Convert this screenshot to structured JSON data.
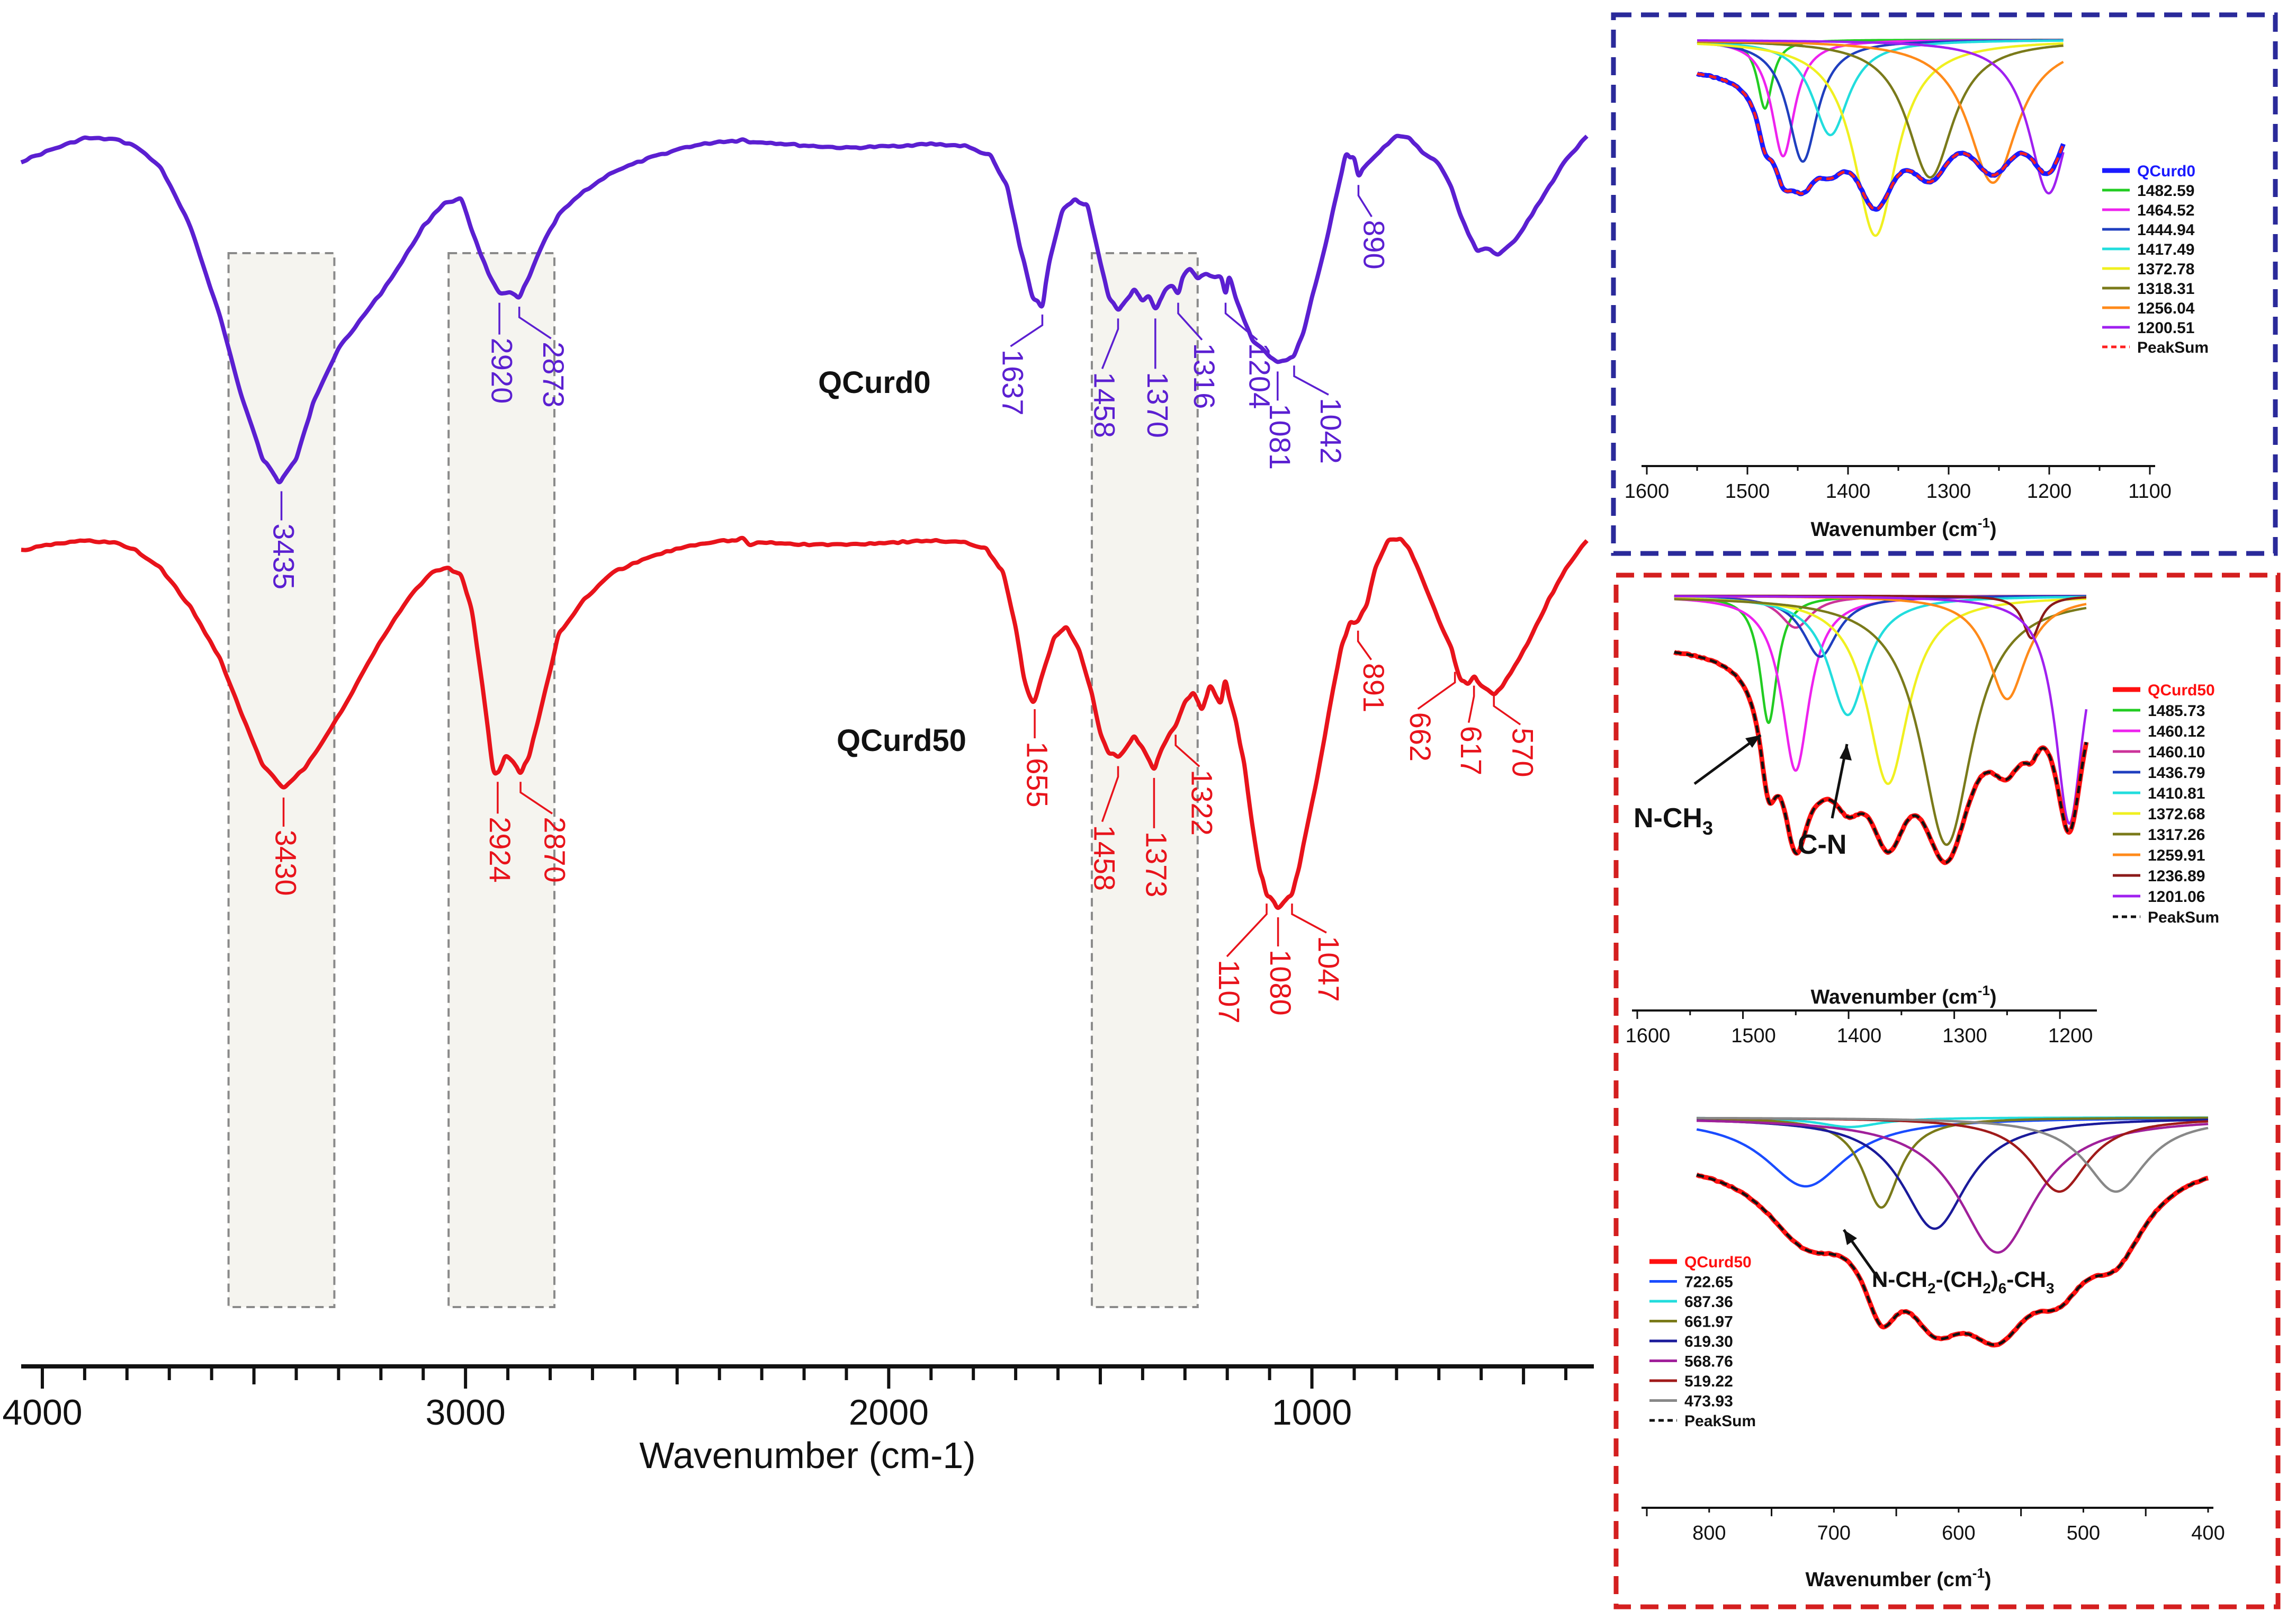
{
  "chart_data": [
    {
      "type": "line",
      "xlabel": "Wavenumber (cm-1)",
      "ylabel": "",
      "xlim": [
        4050,
        340
      ],
      "x_reversed": true,
      "grid": false,
      "x_ticks": [
        4000,
        3000,
        2000,
        1000
      ],
      "highlight_bands": [
        [
          3560,
          3310
        ],
        [
          3040,
          2790
        ],
        [
          1520,
          1270
        ]
      ],
      "series": [
        {
          "name": "QCurd0",
          "color": "#5b1fd1",
          "x": [
            4050,
            3980,
            3900,
            3830,
            3780,
            3720,
            3650,
            3580,
            3530,
            3480,
            3440,
            3400,
            3360,
            3300,
            3250,
            3200,
            3150,
            3100,
            3050,
            3010,
            2975,
            2945,
            2920,
            2895,
            2873,
            2850,
            2820,
            2780,
            2720,
            2650,
            2560,
            2480,
            2400,
            2360,
            2345,
            2330,
            2300,
            2200,
            2100,
            2000,
            1900,
            1820,
            1760,
            1720,
            1690,
            1660,
            1637,
            1620,
            1590,
            1560,
            1530,
            1500,
            1480,
            1458,
            1440,
            1420,
            1400,
            1385,
            1370,
            1345,
            1330,
            1316,
            1305,
            1290,
            1270,
            1250,
            1230,
            1215,
            1204,
            1195,
            1180,
            1160,
            1140,
            1120,
            1100,
            1081,
            1060,
            1042,
            1020,
            1000,
            980,
            960,
            940,
            920,
            900,
            890,
            870,
            840,
            800,
            770,
            740,
            700,
            670,
            650,
            630,
            610,
            590,
            560,
            520,
            480,
            440,
            400,
            350
          ],
          "y": [
            1.335,
            1.365,
            1.395,
            1.392,
            1.375,
            1.32,
            1.17,
            0.94,
            0.74,
            0.58,
            0.52,
            0.58,
            0.72,
            0.86,
            0.93,
            1.0,
            1.08,
            1.17,
            1.23,
            1.24,
            1.13,
            1.05,
            1.0,
            1.0,
            0.99,
            1.04,
            1.12,
            1.2,
            1.26,
            1.31,
            1.346,
            1.372,
            1.386,
            1.388,
            1.393,
            1.384,
            1.385,
            1.376,
            1.37,
            1.374,
            1.38,
            1.375,
            1.35,
            1.27,
            1.12,
            0.99,
            0.97,
            1.08,
            1.21,
            1.24,
            1.22,
            1.08,
            0.99,
            0.96,
            0.98,
            1.01,
            0.98,
            0.99,
            0.96,
            1.01,
            1.02,
            1.0,
            1.04,
            1.06,
            1.04,
            1.05,
            1.04,
            1.04,
            1.0,
            1.04,
            0.99,
            0.93,
            0.88,
            0.86,
            0.84,
            0.825,
            0.83,
            0.84,
            0.9,
            0.99,
            1.07,
            1.16,
            1.26,
            1.35,
            1.34,
            1.3,
            1.33,
            1.36,
            1.4,
            1.395,
            1.36,
            1.33,
            1.27,
            1.2,
            1.15,
            1.11,
            1.115,
            1.1,
            1.135,
            1.2,
            1.27,
            1.34,
            1.4
          ]
        },
        {
          "name": "QCurd50",
          "color": "#e8131b",
          "x": [
            4050,
            3980,
            3900,
            3830,
            3780,
            3720,
            3650,
            3580,
            3530,
            3480,
            3430,
            3380,
            3330,
            3280,
            3230,
            3180,
            3130,
            3080,
            3040,
            3010,
            2985,
            2960,
            2935,
            2924,
            2905,
            2890,
            2870,
            2850,
            2820,
            2780,
            2720,
            2650,
            2560,
            2480,
            2400,
            2360,
            2345,
            2330,
            2300,
            2200,
            2100,
            2000,
            1900,
            1820,
            1770,
            1730,
            1700,
            1680,
            1665,
            1655,
            1640,
            1610,
            1580,
            1550,
            1520,
            1500,
            1480,
            1458,
            1440,
            1420,
            1400,
            1385,
            1373,
            1355,
            1335,
            1322,
            1300,
            1280,
            1260,
            1240,
            1225,
            1215,
            1205,
            1195,
            1180,
            1160,
            1140,
            1125,
            1107,
            1090,
            1080,
            1065,
            1047,
            1030,
            1010,
            990,
            970,
            950,
            930,
            910,
            891,
            870,
            850,
            820,
            790,
            770,
            750,
            720,
            690,
            670,
            662,
            650,
            630,
            617,
            600,
            585,
            570,
            550,
            520,
            480,
            440,
            400,
            350
          ],
          "y": [
            0.345,
            0.36,
            0.37,
            0.365,
            0.345,
            0.3,
            0.2,
            0.07,
            -0.07,
            -0.2,
            -0.26,
            -0.21,
            -0.13,
            -0.04,
            0.06,
            0.15,
            0.23,
            0.29,
            0.3,
            0.28,
            0.19,
            0.0,
            -0.21,
            -0.22,
            -0.18,
            -0.19,
            -0.22,
            -0.18,
            -0.05,
            0.13,
            0.22,
            0.29,
            0.33,
            0.355,
            0.37,
            0.37,
            0.375,
            0.36,
            0.365,
            0.36,
            0.36,
            0.365,
            0.37,
            0.365,
            0.35,
            0.29,
            0.15,
            0.02,
            -0.03,
            -0.035,
            0.02,
            0.12,
            0.15,
            0.09,
            -0.02,
            -0.12,
            -0.17,
            -0.18,
            -0.16,
            -0.13,
            -0.16,
            -0.19,
            -0.21,
            -0.16,
            -0.12,
            -0.1,
            -0.04,
            -0.02,
            -0.06,
            0.0,
            -0.03,
            -0.04,
            0.01,
            -0.03,
            -0.09,
            -0.2,
            -0.36,
            -0.46,
            -0.53,
            -0.55,
            -0.565,
            -0.55,
            -0.53,
            -0.46,
            -0.35,
            -0.25,
            -0.13,
            -0.01,
            0.1,
            0.16,
            0.165,
            0.21,
            0.3,
            0.37,
            0.375,
            0.35,
            0.3,
            0.22,
            0.14,
            0.095,
            0.06,
            0.02,
            0.005,
            0.025,
            0.0,
            -0.01,
            -0.02,
            0.0,
            0.05,
            0.13,
            0.22,
            0.3,
            0.37
          ]
        }
      ],
      "labels": {
        "QCurd0": [
          "3435",
          "2920",
          "2873",
          "1637",
          "1458",
          "1370",
          "1316",
          "1204",
          "1081",
          "1042",
          "890"
        ],
        "QCurd50": [
          "3430",
          "2924",
          "2870",
          "1655",
          "1458",
          "1373",
          "1322",
          "1107",
          "1080",
          "1047",
          "891",
          "662",
          "617",
          "570"
        ]
      }
    },
    {
      "type": "line",
      "title": "",
      "xlabel": "Wavenumber (cm-1)",
      "xlim": [
        1600,
        1100
      ],
      "x_ticks": [
        1600,
        1500,
        1400,
        1300,
        1200,
        1100
      ],
      "legend": [
        "QCurd0",
        "1482.59",
        "1464.52",
        "1444.94",
        "1417.49",
        "1372.78",
        "1318.31",
        "1256.04",
        "1200.51",
        "PeakSum"
      ],
      "legend_colors": [
        "#1a1aff",
        "#22cc22",
        "#ee22ee",
        "#1f3fbf",
        "#22dddd",
        "#f0f020",
        "#7a7a1a",
        "#ff8a1a",
        "#a020f0",
        "#ff2020"
      ]
    },
    {
      "type": "line",
      "xlabel": "Wavenumber (cm-1)",
      "xlim": [
        1610,
        1180
      ],
      "x_ticks": [
        1600,
        1500,
        1400,
        1300,
        1200
      ],
      "legend": [
        "QCurd50",
        "1485.73",
        "1460.12",
        "1460.10",
        "1436.79",
        "1410.81",
        "1372.68",
        "1317.26",
        "1259.91",
        "1236.89",
        "1201.06",
        "PeakSum"
      ],
      "legend_colors": [
        "#ff1010",
        "#22cc22",
        "#ee22ee",
        "#cc3399",
        "#1f3fbf",
        "#22dddd",
        "#f0f020",
        "#7a7a1a",
        "#ff8a1a",
        "#8b1a1a",
        "#a020f0",
        "#111111"
      ],
      "annotations": [
        "N-CH3",
        "C-N"
      ]
    },
    {
      "type": "line",
      "xlabel": "Wavenumber (cm-1)",
      "xlim": [
        850,
        400
      ],
      "x_ticks": [
        800,
        700,
        600,
        500,
        400
      ],
      "legend": [
        "QCurd50",
        "722.65",
        "687.36",
        "661.97",
        "619.30",
        "568.76",
        "519.22",
        "473.93",
        "PeakSum"
      ],
      "legend_colors": [
        "#ff1010",
        "#1a4cff",
        "#22dddd",
        "#7a7a1a",
        "#1a1a9a",
        "#a0209a",
        "#a01a1a",
        "#888888",
        "#111111"
      ],
      "annotations": [
        "N-CH2-(CH2)6-CH3"
      ]
    }
  ],
  "main": {
    "series_label_0": "QCurd0",
    "series_label_1": "QCurd50",
    "xlabel": "Wavenumber (cm-1)"
  },
  "inset_top": {
    "xlabel": "Wavenumber (cm",
    "xlabel_sup": "-1",
    "xlabel_end": ")"
  },
  "inset_mid": {
    "xlabel": "Wavenumber (cm",
    "xlabel_sup": "-1",
    "xlabel_end": ")",
    "annot_nch3": "N-CH",
    "annot_nch3_sub": "3",
    "annot_cn": "C-N"
  },
  "inset_bot": {
    "xlabel": "Wavenumber (cm",
    "xlabel_sup": "-1",
    "xlabel_end": ")",
    "annot_a": "N-CH",
    "annot_a_sub1": "2",
    "annot_b": "-(CH",
    "annot_b_sub": "2",
    "annot_c": ")",
    "annot_c_sub": "6",
    "annot_d": "-CH",
    "annot_d_sub": "3"
  }
}
